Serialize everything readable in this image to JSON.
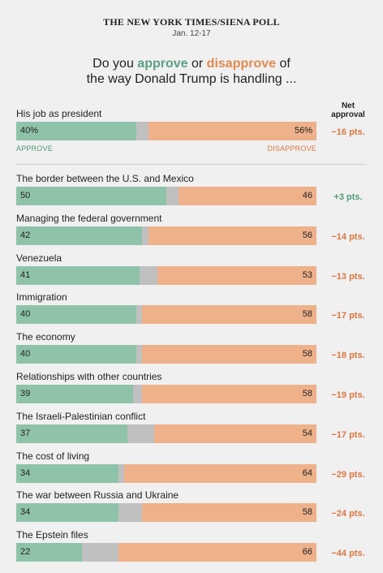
{
  "header": {
    "source": "THE NEW YORK TIMES/SIENA POLL",
    "date": "Jan. 12-17"
  },
  "question": {
    "part1": "Do you ",
    "approve": "approve",
    "part2": " or ",
    "disapprove": "disapprove",
    "part3": " of",
    "line2": "the way Donald Trump is handling ..."
  },
  "net_header": {
    "line1": "Net",
    "line2": "approval"
  },
  "legend": {
    "approve": "APPROVE",
    "disapprove": "DISAPPROVE"
  },
  "colors": {
    "approve": "#8fc3a9",
    "neutral": "#c0c0c0",
    "disapprove": "#eeb18a",
    "positive_text": "#4f9a76",
    "negative_text": "#d97740"
  },
  "chart_data": {
    "type": "bar",
    "orientation": "horizontal",
    "stacked": true,
    "xlim": [
      0,
      100
    ],
    "categories": [
      "His job as president",
      "The border between the U.S. and Mexico",
      "Managing the federal government",
      "Venezuela",
      "Immigration",
      "The economy",
      "Relationships with other countries",
      "The Israeli-Palestinian conflict",
      "The cost of living",
      "The war between Russia and Ukraine",
      "The Epstein files"
    ],
    "series": [
      {
        "name": "Approve",
        "values": [
          40,
          50,
          42,
          41,
          40,
          40,
          39,
          37,
          34,
          34,
          22
        ]
      },
      {
        "name": "Disapprove",
        "values": [
          56,
          46,
          56,
          53,
          58,
          58,
          58,
          54,
          64,
          58,
          66
        ]
      }
    ],
    "value_labels": {
      "approve": [
        "40%",
        "50",
        "42",
        "41",
        "40",
        "40",
        "39",
        "37",
        "34",
        "34",
        "22"
      ],
      "disapprove": [
        "56%",
        "46",
        "56",
        "53",
        "58",
        "58",
        "58",
        "54",
        "64",
        "58",
        "66"
      ]
    },
    "net_approval": [
      -16,
      3,
      -14,
      -13,
      -17,
      -18,
      -19,
      -17,
      -29,
      -24,
      -44
    ],
    "net_labels": [
      "−16 pts.",
      "+3 pts.",
      "−14 pts.",
      "−13 pts.",
      "−17 pts.",
      "−18 pts.",
      "−19 pts.",
      "−17 pts.",
      "−29 pts.",
      "−24 pts.",
      "−44 pts."
    ]
  }
}
